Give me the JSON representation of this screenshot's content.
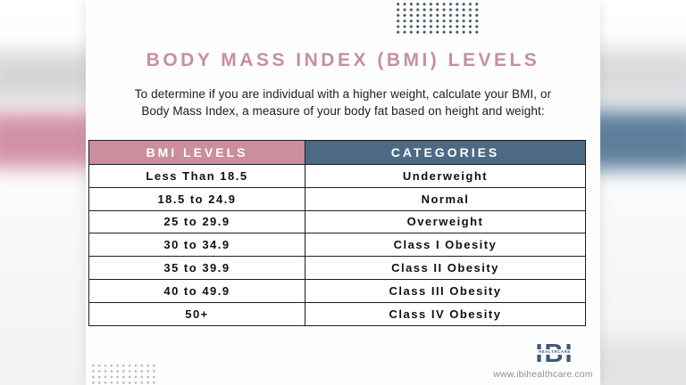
{
  "page": {
    "title": "BODY MASS INDEX (BMI) LEVELS",
    "subtitle_line1": "To determine if you are individual with a higher weight, calculate your BMI, or",
    "subtitle_line2": "Body Mass Index, a measure of your body fat based on height and weight:"
  },
  "table": {
    "headers": [
      "BMI LEVELS",
      "CATEGORIES"
    ],
    "rows": [
      [
        "Less Than 18.5",
        "Underweight"
      ],
      [
        "18.5 to 24.9",
        "Normal"
      ],
      [
        "25 to 29.9",
        "Overweight"
      ],
      [
        "30 to 34.9",
        "Class I Obesity"
      ],
      [
        "35 to 39.9",
        "Class II Obesity"
      ],
      [
        "40 to 49.9",
        "Class III Obesity"
      ],
      [
        "50+",
        "Class IV Obesity"
      ]
    ]
  },
  "footer": {
    "logo_text": "IBI",
    "logo_subtext": "HEALTHCARE",
    "website": "www.ibihealthcare.com"
  },
  "colors": {
    "title_pink": "#c5909f",
    "header_pink": "#ca8e9d",
    "header_blue": "#4c6a84",
    "logo_navy": "#3e5878",
    "dot_grid_dark": "#40525f",
    "dot_grid_light": "#b6b8c3"
  }
}
